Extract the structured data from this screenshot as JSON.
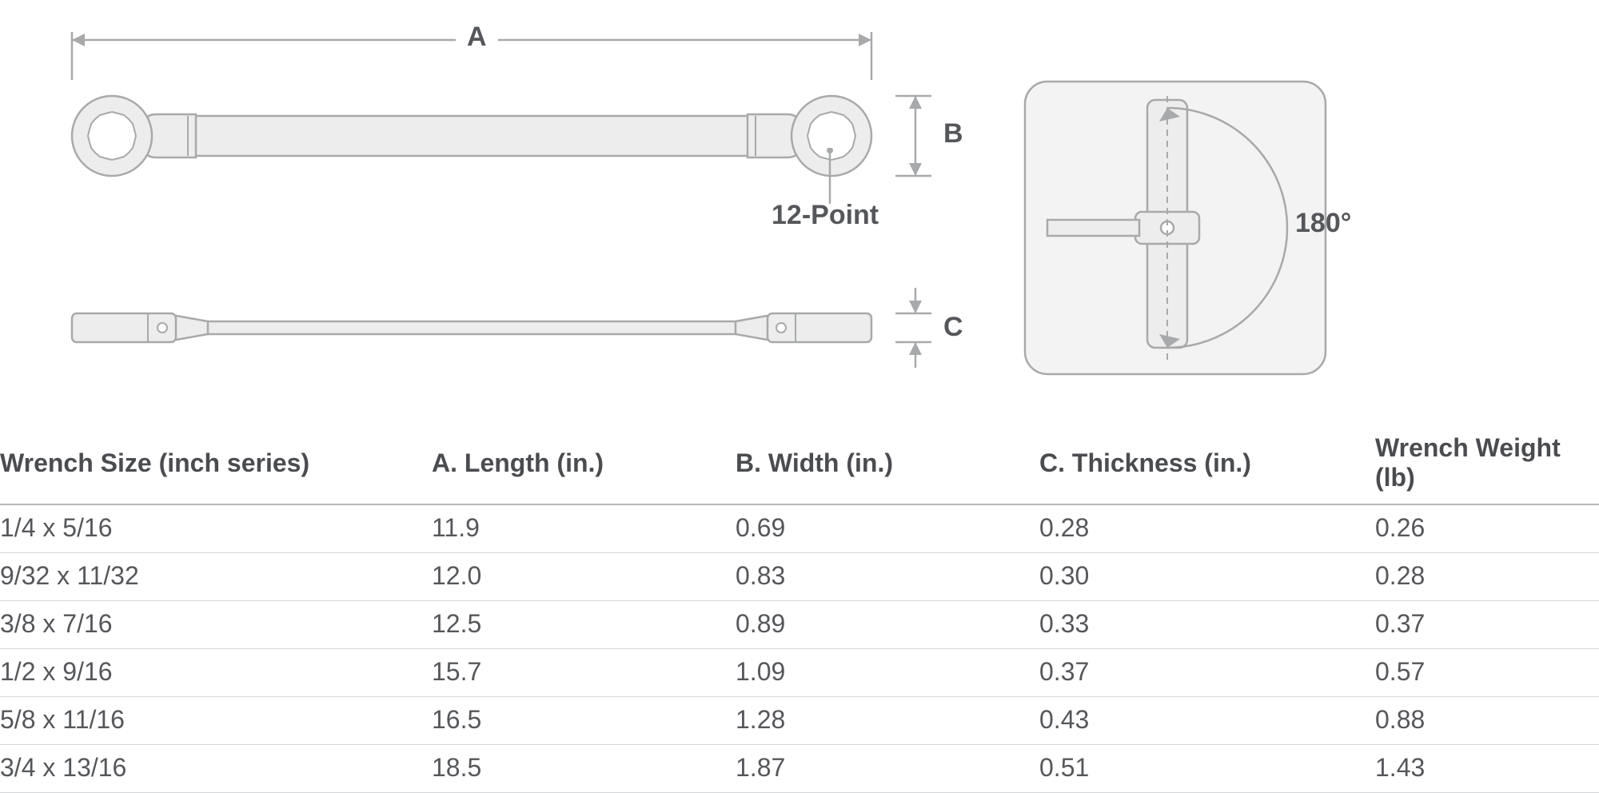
{
  "diagram": {
    "dim_a_label": "A",
    "dim_b_label": "B",
    "dim_c_label": "C",
    "point_label": "12-Point",
    "angle_label": "180°",
    "colors": {
      "stroke": "#a7a9ab",
      "fill": "#ededed",
      "bg": "#ffffff",
      "inset_bg": "#f3f3f3",
      "text": "#55575a"
    },
    "stroke_width": 2.5,
    "inset_corner_radius": 28
  },
  "table": {
    "columns": [
      "Wrench Size (inch series)",
      "A. Length (in.)",
      "B. Width (in.)",
      "C. Thickness (in.)",
      "Wrench Weight (lb)"
    ],
    "col_widths_pct": [
      27,
      19,
      19,
      21,
      14
    ],
    "rows": [
      [
        "1/4 x 5/16",
        "11.9",
        "0.69",
        "0.28",
        "0.26"
      ],
      [
        "9/32 x 11/32",
        "12.0",
        "0.83",
        "0.30",
        "0.28"
      ],
      [
        "3/8 x 7/16",
        "12.5",
        "0.89",
        "0.33",
        "0.37"
      ],
      [
        "1/2 x 9/16",
        "15.7",
        "1.09",
        "0.37",
        "0.57"
      ],
      [
        "5/8 x 11/16",
        "16.5",
        "1.28",
        "0.43",
        "0.88"
      ],
      [
        "3/4 x 13/16",
        "18.5",
        "1.87",
        "0.51",
        "1.43"
      ]
    ]
  }
}
